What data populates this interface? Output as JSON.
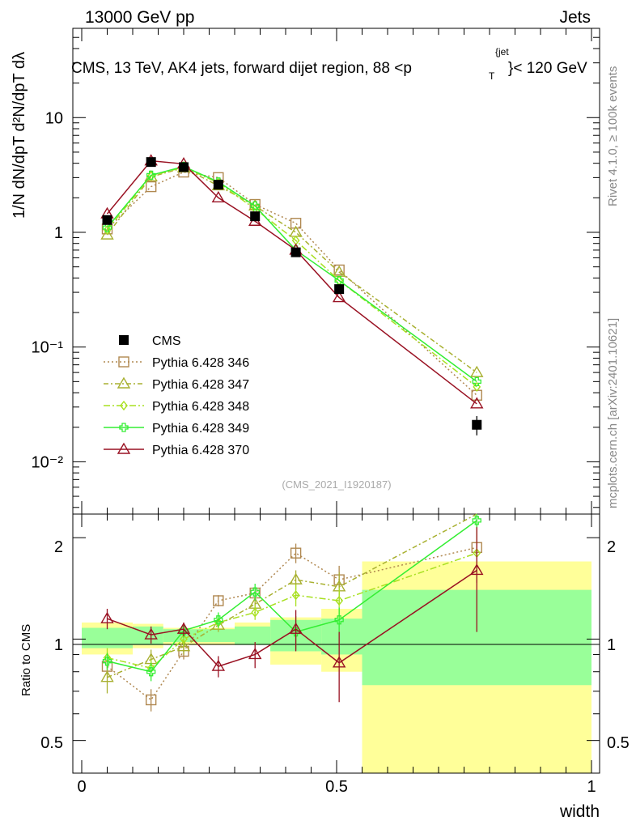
{
  "header": {
    "energy_label": "13000 GeV pp",
    "category_label": "Jets",
    "plot_title": "CMS, 13 TeV, AK4 jets, forward dijet region, 88 <p",
    "title_sub": "T",
    "title_sup": "{jet",
    "title_tail": "}< 120 GeV",
    "side_rivet": "Rivet 4.1.0, ≥ 100k events",
    "side_mcplots": "mcplots.cern.ch [arXiv:2401.10621]",
    "analysis_id": "(CMS_2021_I1920187)"
  },
  "axes": {
    "ylabel_main": "1/N dN/dpT d²N/dpT dλ",
    "ylabel_ratio": "Ratio to CMS",
    "xlabel": "width",
    "main_yticks": [
      "10⁻²",
      "10⁻¹",
      "1",
      "10"
    ],
    "ratio_yticks": [
      "0.5",
      "1",
      "2"
    ],
    "xticks": [
      "0",
      "0.5",
      "1"
    ]
  },
  "legend": [
    {
      "label": "CMS",
      "color": "#000000"
    },
    {
      "label": "Pythia 6.428 346",
      "color": "#b08850"
    },
    {
      "label": "Pythia 6.428 347",
      "color": "#a8b030"
    },
    {
      "label": "Pythia 6.428 348",
      "color": "#a8e020"
    },
    {
      "label": "Pythia 6.428 349",
      "color": "#33ee33"
    },
    {
      "label": "Pythia 6.428 370",
      "color": "#991122"
    }
  ],
  "chart_data": {
    "type": "line",
    "title": "CMS, 13 TeV, AK4 jets, forward dijet region, 88 < pT(jet) < 120 GeV",
    "xlabel": "width",
    "ylabel": "1/N dN/dpT d2N/dpT dlambda",
    "xlim": [
      0,
      1
    ],
    "ylim": [
      0.0035,
      60
    ],
    "yscale": "log",
    "ratio_ylim": [
      0.4,
      2.35
    ],
    "x": [
      0.05,
      0.136,
      0.2,
      0.268,
      0.34,
      0.42,
      0.505,
      0.775
    ],
    "data": {
      "name": "CMS",
      "values": [
        1.28,
        4.1,
        3.7,
        2.6,
        1.38,
        0.67,
        0.32,
        0.021
      ],
      "errors": [
        0.06,
        0.15,
        0.15,
        0.1,
        0.06,
        0.04,
        0.03,
        0.004
      ]
    },
    "series": [
      {
        "name": "Pythia 6.428 346",
        "values": [
          1.07,
          2.5,
          3.35,
          3.0,
          1.75,
          1.2,
          0.47,
          0.038
        ],
        "ratio": [
          0.83,
          0.66,
          0.92,
          1.3,
          1.37,
          1.8,
          1.5,
          1.87
        ],
        "ratio_err": [
          0.05,
          0.05,
          0.05,
          0.05,
          0.05,
          0.12,
          0.15,
          0.4
        ],
        "color": "#b08850",
        "dash": "2,3",
        "marker": "square"
      },
      {
        "name": "Pythia 6.428 347",
        "values": [
          0.95,
          3.05,
          3.65,
          2.55,
          1.7,
          1.0,
          0.45,
          0.06
        ],
        "ratio": [
          0.77,
          0.87,
          0.95,
          1.1,
          1.27,
          1.5,
          1.43,
          2.5
        ],
        "ratio_err": [
          0.08,
          0.06,
          0.05,
          0.05,
          0.05,
          0.1,
          0.15,
          0.5
        ],
        "color": "#a8b030",
        "dash": "6,3,2,3",
        "marker": "triangle"
      },
      {
        "name": "Pythia 6.428 348",
        "values": [
          1.05,
          3.1,
          3.7,
          2.7,
          1.6,
          0.85,
          0.38,
          0.045
        ],
        "ratio": [
          0.88,
          0.82,
          1.0,
          1.12,
          1.2,
          1.35,
          1.3,
          1.8
        ],
        "ratio_err": [
          0.06,
          0.05,
          0.05,
          0.05,
          0.06,
          0.1,
          0.12,
          0.3
        ],
        "color": "#a8e020",
        "dash": "8,3,2,3",
        "marker": "diamond"
      },
      {
        "name": "Pythia 6.428 349",
        "values": [
          1.1,
          3.15,
          3.75,
          2.75,
          1.7,
          0.7,
          0.38,
          0.05
        ],
        "ratio": [
          0.86,
          0.8,
          1.06,
          1.14,
          1.38,
          1.05,
          1.14,
          2.25
        ],
        "ratio_err": [
          0.05,
          0.05,
          0.05,
          0.06,
          0.08,
          0.12,
          0.1,
          0.12
        ],
        "color": "#33ee33",
        "dash": "",
        "marker": "cross"
      },
      {
        "name": "Pythia 6.428 370",
        "values": [
          1.45,
          4.2,
          3.95,
          2.0,
          1.25,
          0.7,
          0.27,
          0.032
        ],
        "ratio": [
          1.15,
          1.03,
          1.07,
          0.83,
          0.9,
          1.07,
          0.85,
          1.6
        ],
        "ratio_err": [
          0.08,
          0.06,
          0.05,
          0.06,
          0.08,
          0.15,
          0.2,
          0.55
        ],
        "color": "#991122",
        "dash": "",
        "marker": "triangle"
      }
    ],
    "uncertainty_bands": {
      "bin_edges": [
        0.0,
        0.1,
        0.16,
        0.3,
        0.37,
        0.47,
        0.55,
        1.0
      ],
      "total_lo": [
        0.9,
        0.94,
        0.96,
        0.98,
        0.84,
        0.8,
        0.36
      ],
      "total_hi": [
        1.12,
        1.11,
        1.08,
        1.12,
        1.16,
        1.23,
        1.7
      ],
      "stat_lo": [
        0.94,
        0.96,
        0.98,
        0.96,
        0.92,
        0.9,
        0.73
      ],
      "stat_hi": [
        1.08,
        1.09,
        1.07,
        1.09,
        1.14,
        1.15,
        1.4
      ],
      "total_color": "#ffff99",
      "stat_color": "#99ff99"
    }
  }
}
